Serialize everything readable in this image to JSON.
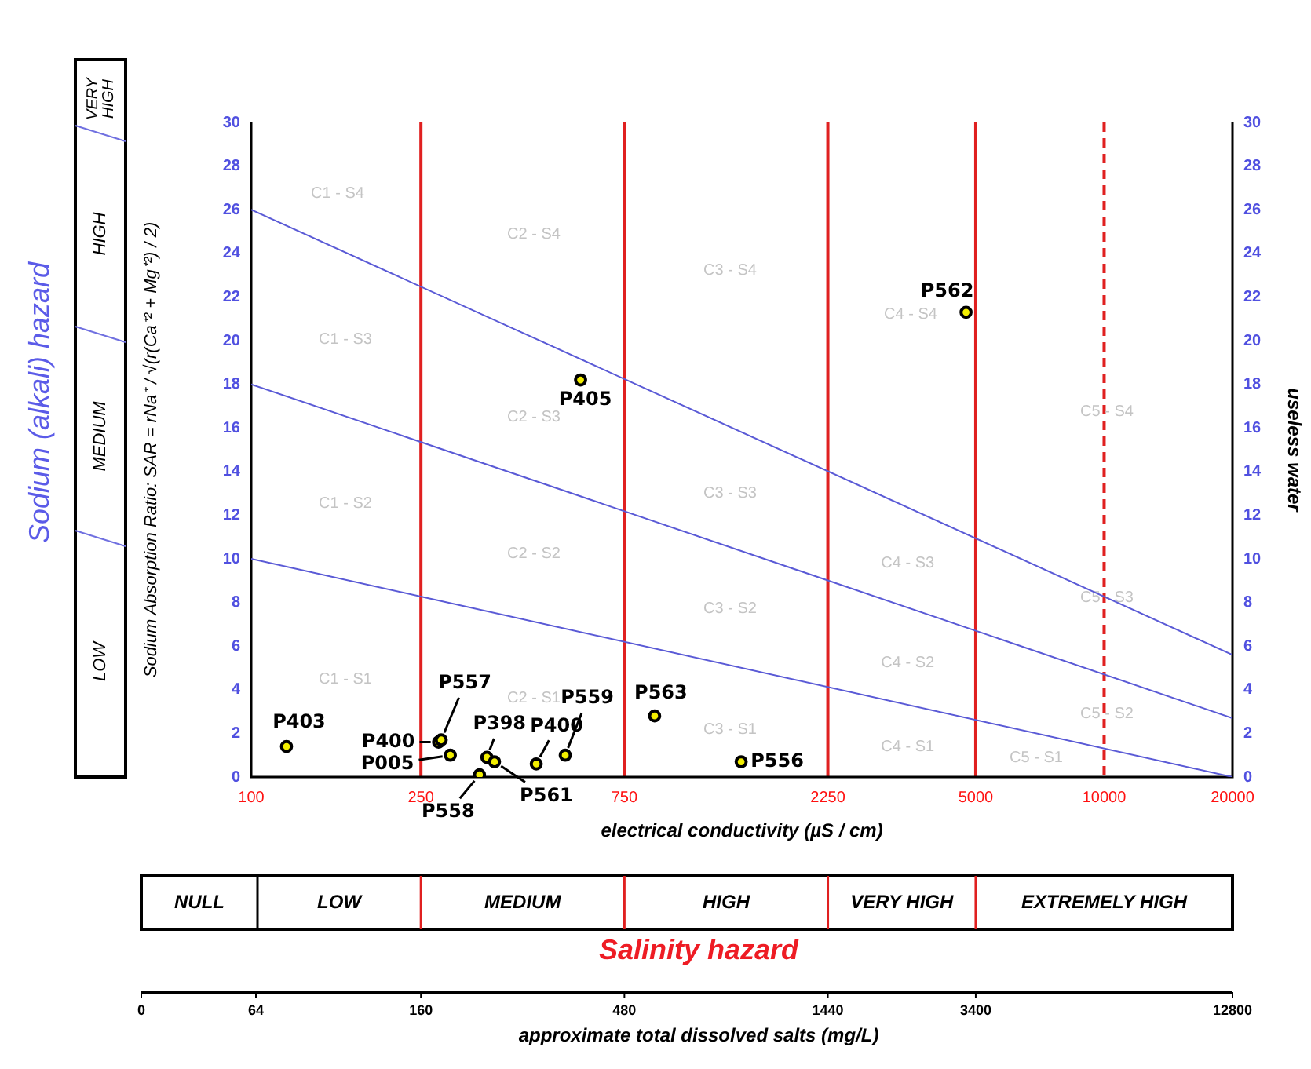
{
  "chart_data": {
    "type": "scatter",
    "xlabel": "electrical conductivity (µS / cm)",
    "ylabel": "Sodium Absorption Ratio: SAR = rNa⁺ / √(r(Ca⁺² + Mg⁺²) / 2)",
    "y2label": "useless water",
    "log": "x",
    "xlim": [
      100,
      20000
    ],
    "xticks": [
      100,
      250,
      750,
      2250,
      5000,
      10000,
      20000
    ],
    "ylim": [
      0,
      30
    ],
    "yticks": [
      0,
      2,
      4,
      6,
      8,
      10,
      12,
      14,
      16,
      18,
      20,
      22,
      24,
      26,
      28,
      30
    ],
    "y2lim": [
      0,
      30
    ],
    "y2ticks": [
      0,
      2,
      4,
      6,
      8,
      10,
      12,
      14,
      16,
      18,
      20,
      22,
      24,
      26,
      28,
      30
    ],
    "grid": false,
    "legend": false,
    "series": [
      {
        "marker": "circle",
        "color": "#000000",
        "x": [
          121,
          275,
          279,
          293,
          343,
          357,
          372,
          466,
          545,
          883,
          1409,
          592,
          4745
        ],
        "values": [
          1.4,
          1.6,
          1.7,
          1.0,
          0.1,
          0.9,
          0.7,
          0.6,
          1.0,
          2.8,
          0.7,
          18.2,
          21.3
        ]
      },
      {
        "type": "line",
        "color": "#5a5ad6",
        "x": [
          100,
          20000
        ],
        "values": [
          26,
          5.6
        ]
      },
      {
        "type": "line",
        "color": "#5a5ad6",
        "x": [
          100,
          20000
        ],
        "values": [
          18,
          2.7
        ]
      },
      {
        "type": "line",
        "color": "#5a5ad6",
        "x": [
          100,
          20000
        ],
        "values": [
          10,
          0
        ]
      }
    ],
    "ref_lines": [
      {
        "axis": "x",
        "value": 250,
        "color": "#e02020",
        "line_style": "solid"
      },
      {
        "axis": "x",
        "value": 750,
        "color": "#e02020",
        "line_style": "solid"
      },
      {
        "axis": "x",
        "value": 2250,
        "color": "#e02020",
        "line_style": "solid"
      },
      {
        "axis": "x",
        "value": 5000,
        "color": "#e02020",
        "line_style": "solid"
      },
      {
        "axis": "x",
        "value": 10000,
        "color": "#e02020",
        "line_style": "dashed"
      }
    ],
    "annotations": [
      "Sodium (alkali) hazard",
      "LOW",
      "MEDIUM",
      "HIGH",
      "VERY HIGH",
      "Salinity hazard",
      "NULL",
      "LOW",
      "MEDIUM",
      "HIGH",
      "VERY HIGH",
      "EXTREMELY HIGH",
      "approximate total dissolved salts (mg/L)",
      "0",
      "64",
      "160",
      "480",
      "1440",
      "3400",
      "12800",
      "C1 - S4",
      "C2 - S4",
      "C3 - S4",
      "C4 - S4",
      "C5 - S4",
      "C1 - S3",
      "C2 - S3",
      "C3 - S3",
      "C4 - S3",
      "C5 - S3",
      "C1 - S2",
      "C2 - S2",
      "C3 - S2",
      "C4 - S2",
      "C5 - S2",
      "C1 - S1",
      "C2 - S1",
      "C3 - S1",
      "C4 - S1",
      "C5 - S1",
      {
        "text": "P403",
        "x": 121,
        "y": 1.4
      },
      {
        "text": "P400",
        "x": 275,
        "y": 1.6
      },
      {
        "text": "P557",
        "x": 279,
        "y": 1.7
      },
      {
        "text": "P005",
        "x": 293,
        "y": 1.0
      },
      {
        "text": "P558",
        "x": 343,
        "y": 0.1
      },
      {
        "text": "P398",
        "x": 357,
        "y": 0.9
      },
      {
        "text": "P561",
        "x": 372,
        "y": 0.7
      },
      {
        "text": "P400",
        "x": 466,
        "y": 0.6
      },
      {
        "text": "P559",
        "x": 545,
        "y": 1.0
      },
      {
        "text": "P563",
        "x": 883,
        "y": 2.8
      },
      {
        "text": "P556",
        "x": 1409,
        "y": 0.7
      },
      {
        "text": "P405",
        "x": 592,
        "y": 18.2
      },
      {
        "text": "P562",
        "x": 4745,
        "y": 21.3
      }
    ]
  }
}
